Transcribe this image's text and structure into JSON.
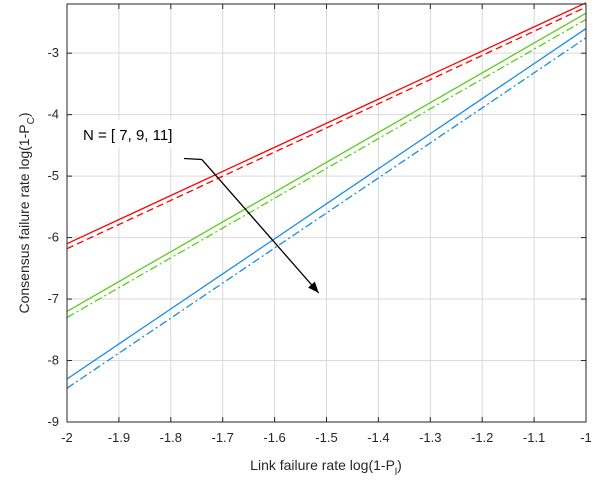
{
  "chart_data": {
    "type": "line",
    "xlabel": "Link failure rate log(1-P",
    "xlabel_sub": "l",
    "xlabel_end": ")",
    "ylabel": "Consensus failure rate log(1-P",
    "ylabel_sub": "C",
    "ylabel_end": ")",
    "xlim": [
      -2,
      -1
    ],
    "ylim": [
      -9,
      -2.2
    ],
    "grid": true,
    "xticks": [
      -2,
      -1.9,
      -1.8,
      -1.7,
      -1.6,
      -1.5,
      -1.4,
      -1.3,
      -1.2,
      -1.1,
      -1
    ],
    "xtick_labels": [
      "-2",
      "-1.9",
      "-1.8",
      "-1.7",
      "-1.6",
      "-1.5",
      "-1.4",
      "-1.3",
      "-1.2",
      "-1.1",
      "-1"
    ],
    "yticks": [
      -9,
      -8,
      -7,
      -6,
      -5,
      -4,
      -3
    ],
    "ytick_labels": [
      "-9",
      "-8",
      "-7",
      "-6",
      "-5",
      "-4",
      "-3"
    ],
    "series": [
      {
        "color": "#ff0000",
        "style": "solid",
        "x": [
          -2,
          -1
        ],
        "y": [
          -6.1,
          -2.18
        ]
      },
      {
        "color": "#ff0000",
        "style": "dashed",
        "x": [
          -2,
          -1
        ],
        "y": [
          -6.18,
          -2.25
        ]
      },
      {
        "color": "#5ccc1a",
        "style": "solid",
        "x": [
          -2,
          -1
        ],
        "y": [
          -7.2,
          -2.35
        ]
      },
      {
        "color": "#5ccc1a",
        "style": "dashdot",
        "x": [
          -2,
          -1
        ],
        "y": [
          -7.3,
          -2.45
        ]
      },
      {
        "color": "#1a8ce6",
        "style": "solid",
        "x": [
          -2,
          -1
        ],
        "y": [
          -8.3,
          -2.6
        ]
      },
      {
        "color": "#1a8ce6",
        "style": "dashdot",
        "x": [
          -2,
          -1
        ],
        "y": [
          -8.45,
          -2.75
        ]
      }
    ],
    "annotation": {
      "text": "N = [ 7, 9, 11]",
      "arrow_from": [
        -1.74,
        -4.73
      ],
      "arrow_to": [
        -1.515,
        -6.9
      ]
    }
  }
}
